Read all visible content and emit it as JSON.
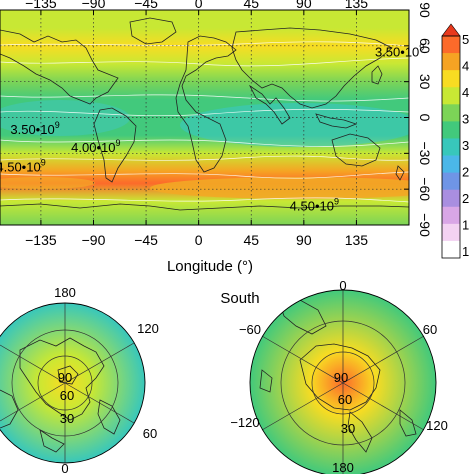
{
  "chart_data": {
    "type": "heatmap",
    "top_map": {
      "projection": "equirectangular",
      "xlabel": "Longitude (°)",
      "lon_ticks": [
        -135,
        -90,
        -45,
        0,
        45,
        90,
        135
      ],
      "lat_ticks": [
        90,
        60,
        30,
        0,
        -30,
        -60,
        -90
      ],
      "lon_tick_labels": [
        "−135",
        "−90",
        "−45",
        "0",
        "45",
        "90",
        "135"
      ],
      "lat_tick_labels": [
        "90",
        "60",
        "30",
        "0",
        "−30",
        "−60",
        "−90"
      ],
      "grid": true,
      "contour_labels": [
        {
          "text": "3.50•10",
          "exp": "9",
          "value": 3500000000.0,
          "lon": 172,
          "lat": 51
        },
        {
          "text": "3.50•10",
          "exp": "9",
          "value": 3500000000.0,
          "lon": -140,
          "lat": -14
        },
        {
          "text": "4.00•10",
          "exp": "9",
          "value": 4000000000.0,
          "lon": -88,
          "lat": -29
        },
        {
          "text": "4.50•10",
          "exp": "9",
          "value": 4500000000.0,
          "lon": -152,
          "lat": -45
        },
        {
          "text": "4.50•10",
          "exp": "9",
          "value": 4500000000.0,
          "lon": 99,
          "lat": -78
        }
      ],
      "zonal_profile": [
        {
          "lat": 90,
          "value": 3.9
        },
        {
          "lat": 75,
          "value": 4.0
        },
        {
          "lat": 60,
          "value": 4.35
        },
        {
          "lat": 45,
          "value": 4.15
        },
        {
          "lat": 30,
          "value": 3.7
        },
        {
          "lat": 15,
          "value": 3.25
        },
        {
          "lat": 0,
          "value": 3.2
        },
        {
          "lat": -15,
          "value": 3.45
        },
        {
          "lat": -30,
          "value": 3.95
        },
        {
          "lat": -45,
          "value": 4.6
        },
        {
          "lat": -55,
          "value": 4.85
        },
        {
          "lat": -70,
          "value": 4.1
        },
        {
          "lat": -90,
          "value": 3.7
        }
      ]
    },
    "colorbar": {
      "tick_labels": [
        "5",
        "4",
        "4",
        "3",
        "3",
        "2",
        "2",
        "1",
        "1"
      ],
      "extend": "max",
      "colors": [
        "#fc6a2a",
        "#f6a323",
        "#f8dc22",
        "#c8e834",
        "#7cd457",
        "#42c97c",
        "#38c7bb",
        "#4bb7e8",
        "#6f95e6",
        "#a98ee0",
        "#d9a6e6",
        "#f3d2f2",
        "#ffffff"
      ]
    },
    "north_polar": {
      "title": "",
      "projection": "polar",
      "lon_labels": [
        "180",
        "120",
        "60",
        "0"
      ],
      "lat_labels": [
        "90",
        "60",
        "30"
      ],
      "center_value": 4.3,
      "edge_value": 3.0
    },
    "south_polar": {
      "title": "South",
      "projection": "polar",
      "lon_labels": [
        "0",
        "60",
        "−60",
        "−120",
        "120",
        "180"
      ],
      "lat_labels": [
        "90",
        "60",
        "30"
      ],
      "center_value": 5.0,
      "edge_value": 3.3
    }
  }
}
